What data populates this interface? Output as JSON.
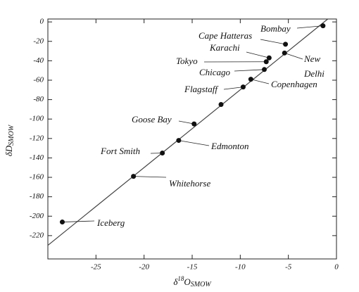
{
  "chart_data": {
    "type": "scatter",
    "xlabel": {
      "base": "δ",
      "sup": "18",
      "main": "O",
      "sub": "SMOW"
    },
    "ylabel": {
      "main": "δD",
      "sub": "SMOW"
    },
    "labels": [
      [
        "Bombay"
      ],
      [
        "Cape Hatteras"
      ],
      [
        "Karachi"
      ],
      [
        "New",
        "Delhi"
      ],
      [
        "Tokyo"
      ],
      [
        "Chicago"
      ],
      [
        "Copenhagen"
      ],
      [
        "Flagstaff"
      ],
      null,
      [
        "Goose Bay"
      ],
      [
        "Edmonton"
      ],
      [
        "Fort Smith"
      ],
      [
        "Whitehorse"
      ],
      [
        "Iceberg"
      ]
    ],
    "x": [
      -1.4,
      -5.3,
      -7.0,
      -5.4,
      -7.3,
      -7.5,
      -8.9,
      -9.7,
      -12.0,
      -14.8,
      -16.4,
      -18.1,
      -21.1,
      -28.5
    ],
    "y": [
      -4,
      -23,
      -37,
      -32,
      -41,
      -49,
      -59,
      -67,
      -85,
      -105,
      -122,
      -135,
      -159,
      -206
    ],
    "color": "#111111",
    "fit": {
      "x": [
        -30,
        -0.9
      ],
      "y": [
        -230,
        3
      ]
    },
    "xlim": [
      -30,
      0
    ],
    "ylim": [
      -244,
      3
    ],
    "xticks": [
      -25,
      -20,
      -15,
      -10,
      -5,
      0
    ],
    "yticks": [
      0,
      -20,
      -40,
      -60,
      -80,
      -100,
      -120,
      -140,
      -160,
      -180,
      -200,
      -220
    ]
  }
}
